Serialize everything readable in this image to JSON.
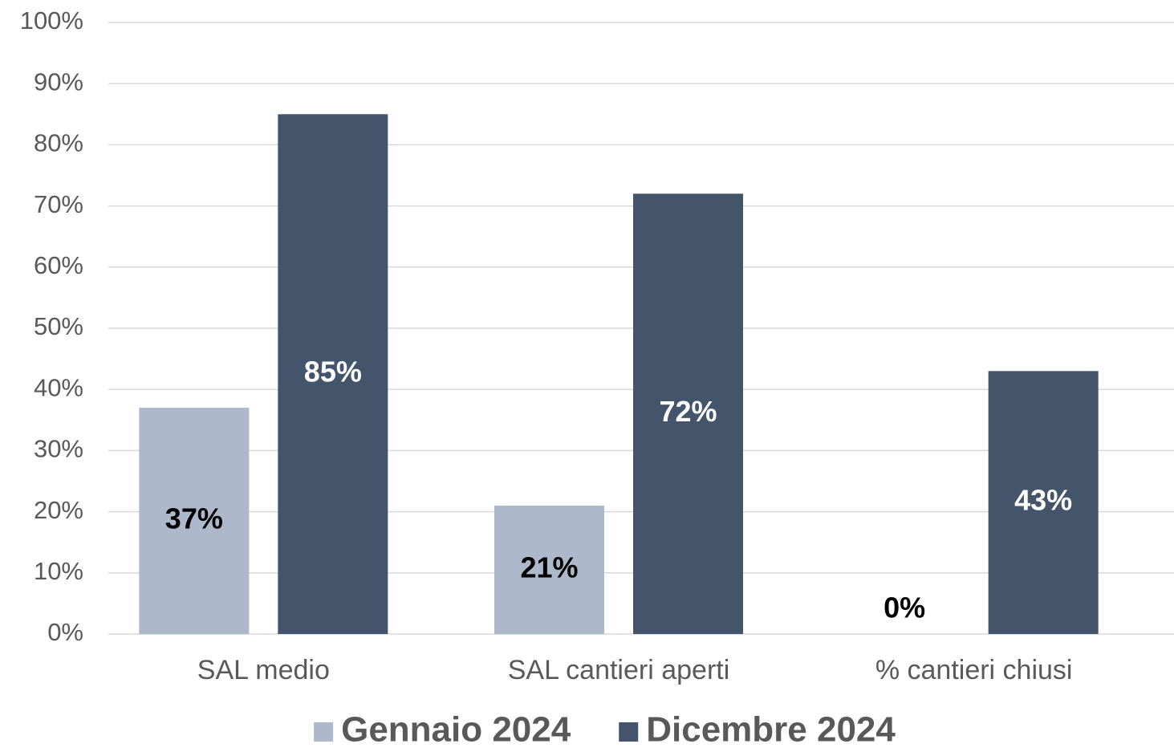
{
  "chart_data": {
    "type": "bar",
    "categories": [
      "SAL medio",
      "SAL cantieri aperti",
      "% cantieri chiusi"
    ],
    "series": [
      {
        "name": "Gennaio 2024",
        "color": "#adb9ca",
        "values": [
          37,
          21,
          0
        ],
        "value_labels": [
          "37%",
          "21%",
          "0%"
        ]
      },
      {
        "name": "Dicembre 2024",
        "color": "#44546a",
        "values": [
          85,
          72,
          43
        ],
        "value_labels": [
          "85%",
          "72%",
          "43%"
        ]
      }
    ],
    "ylim": [
      0,
      100
    ],
    "yticks": [
      {
        "value": 0,
        "label": "0%"
      },
      {
        "value": 10,
        "label": "10%"
      },
      {
        "value": 20,
        "label": "20%"
      },
      {
        "value": 30,
        "label": "30%"
      },
      {
        "value": 40,
        "label": "40%"
      },
      {
        "value": 50,
        "label": "50%"
      },
      {
        "value": 60,
        "label": "60%"
      },
      {
        "value": 70,
        "label": "70%"
      },
      {
        "value": 80,
        "label": "80%"
      },
      {
        "value": 90,
        "label": "90%"
      },
      {
        "value": 100,
        "label": "100%"
      }
    ],
    "grid": true,
    "legend": "bottom"
  }
}
